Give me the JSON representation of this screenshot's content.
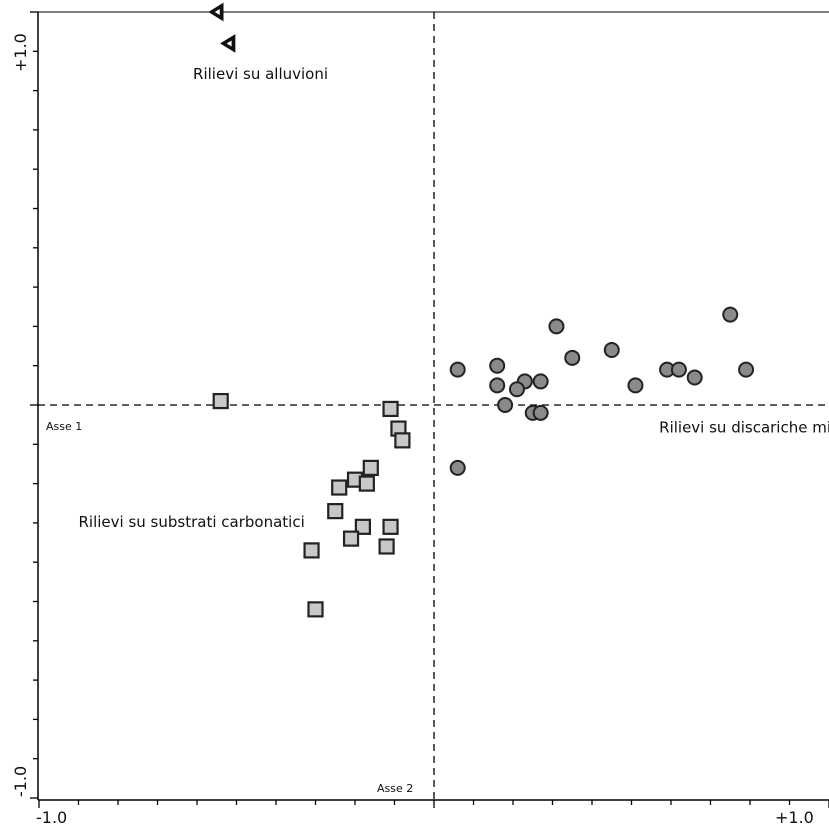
{
  "chart_data": {
    "type": "scatter",
    "xlim": [
      -1.0,
      1.0
    ],
    "ylim": [
      -1.0,
      1.0
    ],
    "grid": false,
    "reference_lines": {
      "x": 0,
      "y": 0,
      "style": "dashed"
    },
    "x_tick_labels": {
      "min": "-1.0",
      "max": "+1.0"
    },
    "y_tick_labels": {
      "min": "-1.0",
      "max": "+1.0"
    },
    "axis_names": {
      "x": "Asse 1",
      "y": "Asse 2"
    },
    "annotations": [
      {
        "text": "Rilievi su alluvioni",
        "x": -0.61,
        "y": 0.83
      },
      {
        "text": "Rilievi su discariche minerarie",
        "x": 0.57,
        "y": -0.07
      },
      {
        "text": "Rilievi su substrati carbonatici",
        "x": -0.9,
        "y": -0.31
      }
    ],
    "series": [
      {
        "marker": "triangle",
        "color": "#111111",
        "points": [
          {
            "x": -0.55,
            "y": 1.0
          },
          {
            "x": -0.52,
            "y": 0.92
          }
        ]
      },
      {
        "marker": "square",
        "color": "#c8c8c8",
        "points": [
          {
            "x": -0.54,
            "y": 0.01
          },
          {
            "x": -0.11,
            "y": -0.01
          },
          {
            "x": -0.09,
            "y": -0.06
          },
          {
            "x": -0.08,
            "y": -0.09
          },
          {
            "x": -0.16,
            "y": -0.16
          },
          {
            "x": -0.2,
            "y": -0.19
          },
          {
            "x": -0.17,
            "y": -0.2
          },
          {
            "x": -0.24,
            "y": -0.21
          },
          {
            "x": -0.25,
            "y": -0.27
          },
          {
            "x": -0.18,
            "y": -0.31
          },
          {
            "x": -0.11,
            "y": -0.31
          },
          {
            "x": -0.21,
            "y": -0.34
          },
          {
            "x": -0.12,
            "y": -0.36
          },
          {
            "x": -0.31,
            "y": -0.37
          },
          {
            "x": -0.3,
            "y": -0.52
          }
        ]
      },
      {
        "marker": "circle",
        "color": "#8a8a8a",
        "points": [
          {
            "x": 0.06,
            "y": 0.09
          },
          {
            "x": 0.16,
            "y": 0.1
          },
          {
            "x": 0.16,
            "y": 0.05
          },
          {
            "x": 0.31,
            "y": 0.2
          },
          {
            "x": 0.35,
            "y": 0.12
          },
          {
            "x": 0.23,
            "y": 0.06
          },
          {
            "x": 0.21,
            "y": 0.04
          },
          {
            "x": 0.27,
            "y": 0.06
          },
          {
            "x": 0.18,
            "y": 0.0
          },
          {
            "x": 0.25,
            "y": -0.02
          },
          {
            "x": 0.27,
            "y": -0.02
          },
          {
            "x": 0.06,
            "y": -0.16
          },
          {
            "x": 0.45,
            "y": 0.14
          },
          {
            "x": 0.51,
            "y": 0.05
          },
          {
            "x": 0.59,
            "y": 0.09
          },
          {
            "x": 0.62,
            "y": 0.09
          },
          {
            "x": 0.66,
            "y": 0.07
          },
          {
            "x": 0.75,
            "y": 0.23
          },
          {
            "x": 0.79,
            "y": 0.09
          }
        ]
      }
    ]
  }
}
